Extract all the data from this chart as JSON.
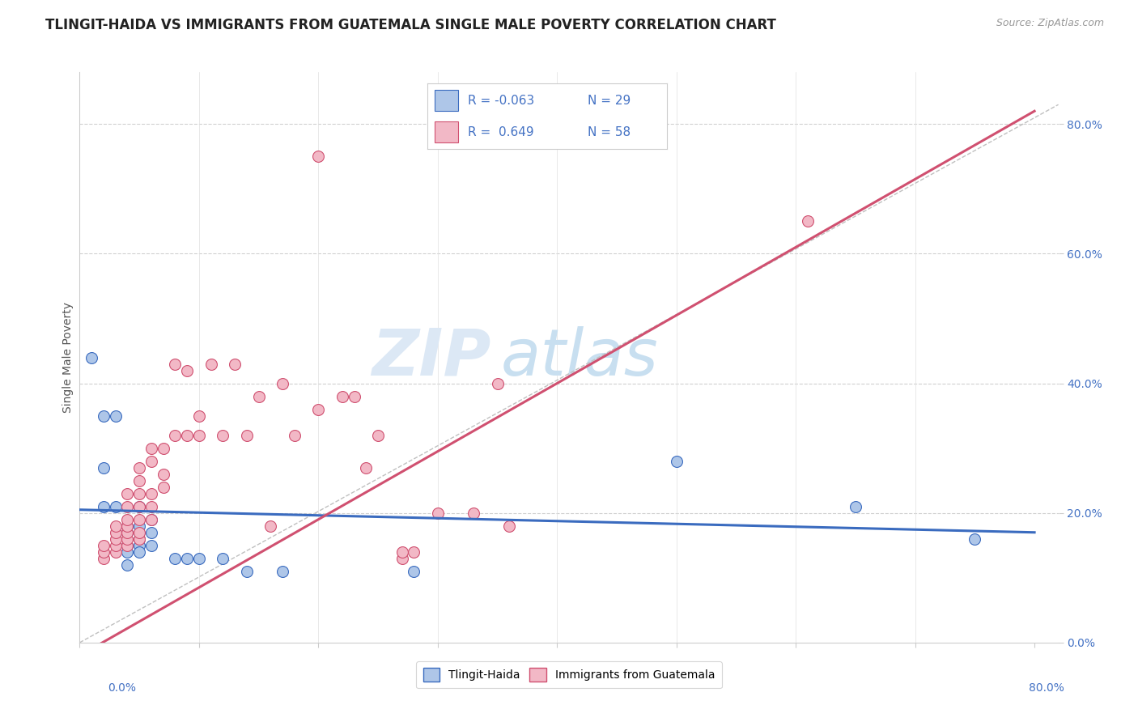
{
  "title": "TLINGIT-HAIDA VS IMMIGRANTS FROM GUATEMALA SINGLE MALE POVERTY CORRELATION CHART",
  "source": "Source: ZipAtlas.com",
  "ylabel": "Single Male Poverty",
  "ytick_labels": [
    "0.0%",
    "20.0%",
    "40.0%",
    "60.0%",
    "80.0%"
  ],
  "ytick_values": [
    0.0,
    0.2,
    0.4,
    0.6,
    0.8
  ],
  "xlim": [
    0.0,
    0.82
  ],
  "ylim": [
    0.0,
    0.88
  ],
  "blue_color": "#aec6e8",
  "pink_color": "#f2b8c6",
  "blue_line_color": "#3a6bbf",
  "pink_line_color": "#d05070",
  "blue_scatter": [
    [
      0.01,
      0.44
    ],
    [
      0.02,
      0.35
    ],
    [
      0.02,
      0.27
    ],
    [
      0.02,
      0.21
    ],
    [
      0.03,
      0.35
    ],
    [
      0.03,
      0.21
    ],
    [
      0.04,
      0.18
    ],
    [
      0.04,
      0.17
    ],
    [
      0.04,
      0.15
    ],
    [
      0.04,
      0.14
    ],
    [
      0.04,
      0.12
    ],
    [
      0.05,
      0.21
    ],
    [
      0.05,
      0.18
    ],
    [
      0.05,
      0.16
    ],
    [
      0.05,
      0.15
    ],
    [
      0.05,
      0.14
    ],
    [
      0.06,
      0.19
    ],
    [
      0.06,
      0.17
    ],
    [
      0.06,
      0.15
    ],
    [
      0.08,
      0.13
    ],
    [
      0.09,
      0.13
    ],
    [
      0.1,
      0.13
    ],
    [
      0.12,
      0.13
    ],
    [
      0.14,
      0.11
    ],
    [
      0.17,
      0.11
    ],
    [
      0.28,
      0.11
    ],
    [
      0.5,
      0.28
    ],
    [
      0.65,
      0.21
    ],
    [
      0.75,
      0.16
    ]
  ],
  "pink_scatter": [
    [
      0.02,
      0.13
    ],
    [
      0.02,
      0.14
    ],
    [
      0.02,
      0.15
    ],
    [
      0.03,
      0.14
    ],
    [
      0.03,
      0.15
    ],
    [
      0.03,
      0.16
    ],
    [
      0.03,
      0.17
    ],
    [
      0.03,
      0.18
    ],
    [
      0.04,
      0.15
    ],
    [
      0.04,
      0.16
    ],
    [
      0.04,
      0.17
    ],
    [
      0.04,
      0.18
    ],
    [
      0.04,
      0.19
    ],
    [
      0.04,
      0.21
    ],
    [
      0.04,
      0.23
    ],
    [
      0.05,
      0.16
    ],
    [
      0.05,
      0.17
    ],
    [
      0.05,
      0.19
    ],
    [
      0.05,
      0.21
    ],
    [
      0.05,
      0.23
    ],
    [
      0.05,
      0.25
    ],
    [
      0.05,
      0.27
    ],
    [
      0.06,
      0.19
    ],
    [
      0.06,
      0.21
    ],
    [
      0.06,
      0.23
    ],
    [
      0.06,
      0.28
    ],
    [
      0.06,
      0.3
    ],
    [
      0.07,
      0.24
    ],
    [
      0.07,
      0.26
    ],
    [
      0.07,
      0.3
    ],
    [
      0.08,
      0.32
    ],
    [
      0.08,
      0.43
    ],
    [
      0.09,
      0.32
    ],
    [
      0.09,
      0.42
    ],
    [
      0.1,
      0.32
    ],
    [
      0.1,
      0.35
    ],
    [
      0.11,
      0.43
    ],
    [
      0.12,
      0.32
    ],
    [
      0.13,
      0.43
    ],
    [
      0.14,
      0.32
    ],
    [
      0.15,
      0.38
    ],
    [
      0.16,
      0.18
    ],
    [
      0.17,
      0.4
    ],
    [
      0.18,
      0.32
    ],
    [
      0.2,
      0.36
    ],
    [
      0.22,
      0.38
    ],
    [
      0.23,
      0.38
    ],
    [
      0.24,
      0.27
    ],
    [
      0.25,
      0.32
    ],
    [
      0.27,
      0.13
    ],
    [
      0.27,
      0.14
    ],
    [
      0.28,
      0.14
    ],
    [
      0.3,
      0.2
    ],
    [
      0.33,
      0.2
    ],
    [
      0.35,
      0.4
    ],
    [
      0.36,
      0.18
    ],
    [
      0.61,
      0.65
    ],
    [
      0.2,
      0.75
    ]
  ],
  "watermark_zip": "ZIP",
  "watermark_atlas": "atlas",
  "title_fontsize": 12,
  "axis_fontsize": 10,
  "tick_fontsize": 10,
  "legend_fontsize": 11
}
